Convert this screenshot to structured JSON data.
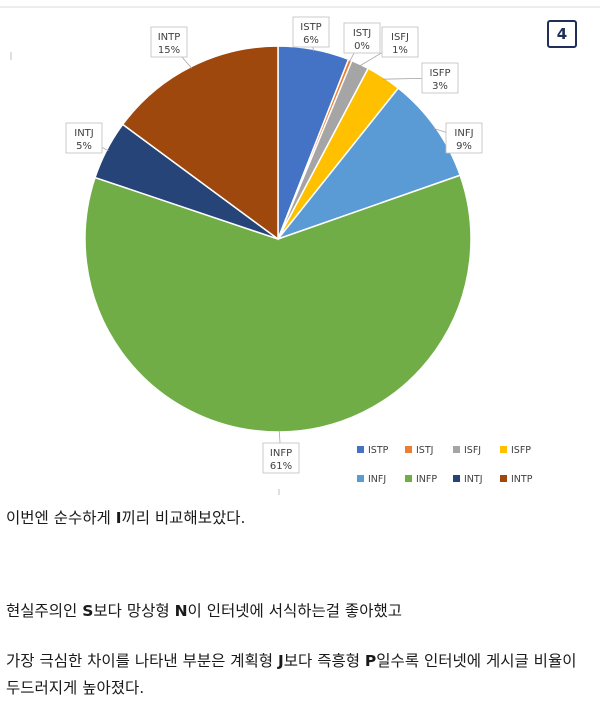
{
  "page_badge": "4",
  "chart_data": {
    "type": "pie",
    "categories": [
      "ISTP",
      "ISTJ",
      "ISFJ",
      "ISFP",
      "INFJ",
      "INFP",
      "INTJ",
      "INTP"
    ],
    "values": [
      6,
      0.3,
      1.5,
      3,
      9,
      61,
      5,
      15
    ],
    "labels_pct": [
      "6%",
      "0%",
      "1%",
      "3%",
      "9%",
      "61%",
      "5%",
      "15%"
    ],
    "colors": [
      "#4472c4",
      "#ed7d31",
      "#a5a5a5",
      "#ffc000",
      "#5b9bd5",
      "#70ad47",
      "#264478",
      "#9e480e"
    ],
    "legend_position": "bottom-right"
  },
  "text": {
    "line1_pre": "이번엔 순수하게 ",
    "line1_bold": "I",
    "line1_post": "끼리 비교해보았다.",
    "line2_pre": "현실주의인 ",
    "line2_bold1": "S",
    "line2_mid": "보다 망상형 ",
    "line2_bold2": "N",
    "line2_post": "이 인터넷에 서식하는걸 좋아했고",
    "line3_pre": "가장 극심한 차이를 나타낸 부분은 계획형 ",
    "line3_bold1": "J",
    "line3_mid": "보다 즉흥형 ",
    "line3_bold2": "P",
    "line3_post": "일수록 인터넷에 게시글 비율이 두드러지게 높아졌다."
  }
}
